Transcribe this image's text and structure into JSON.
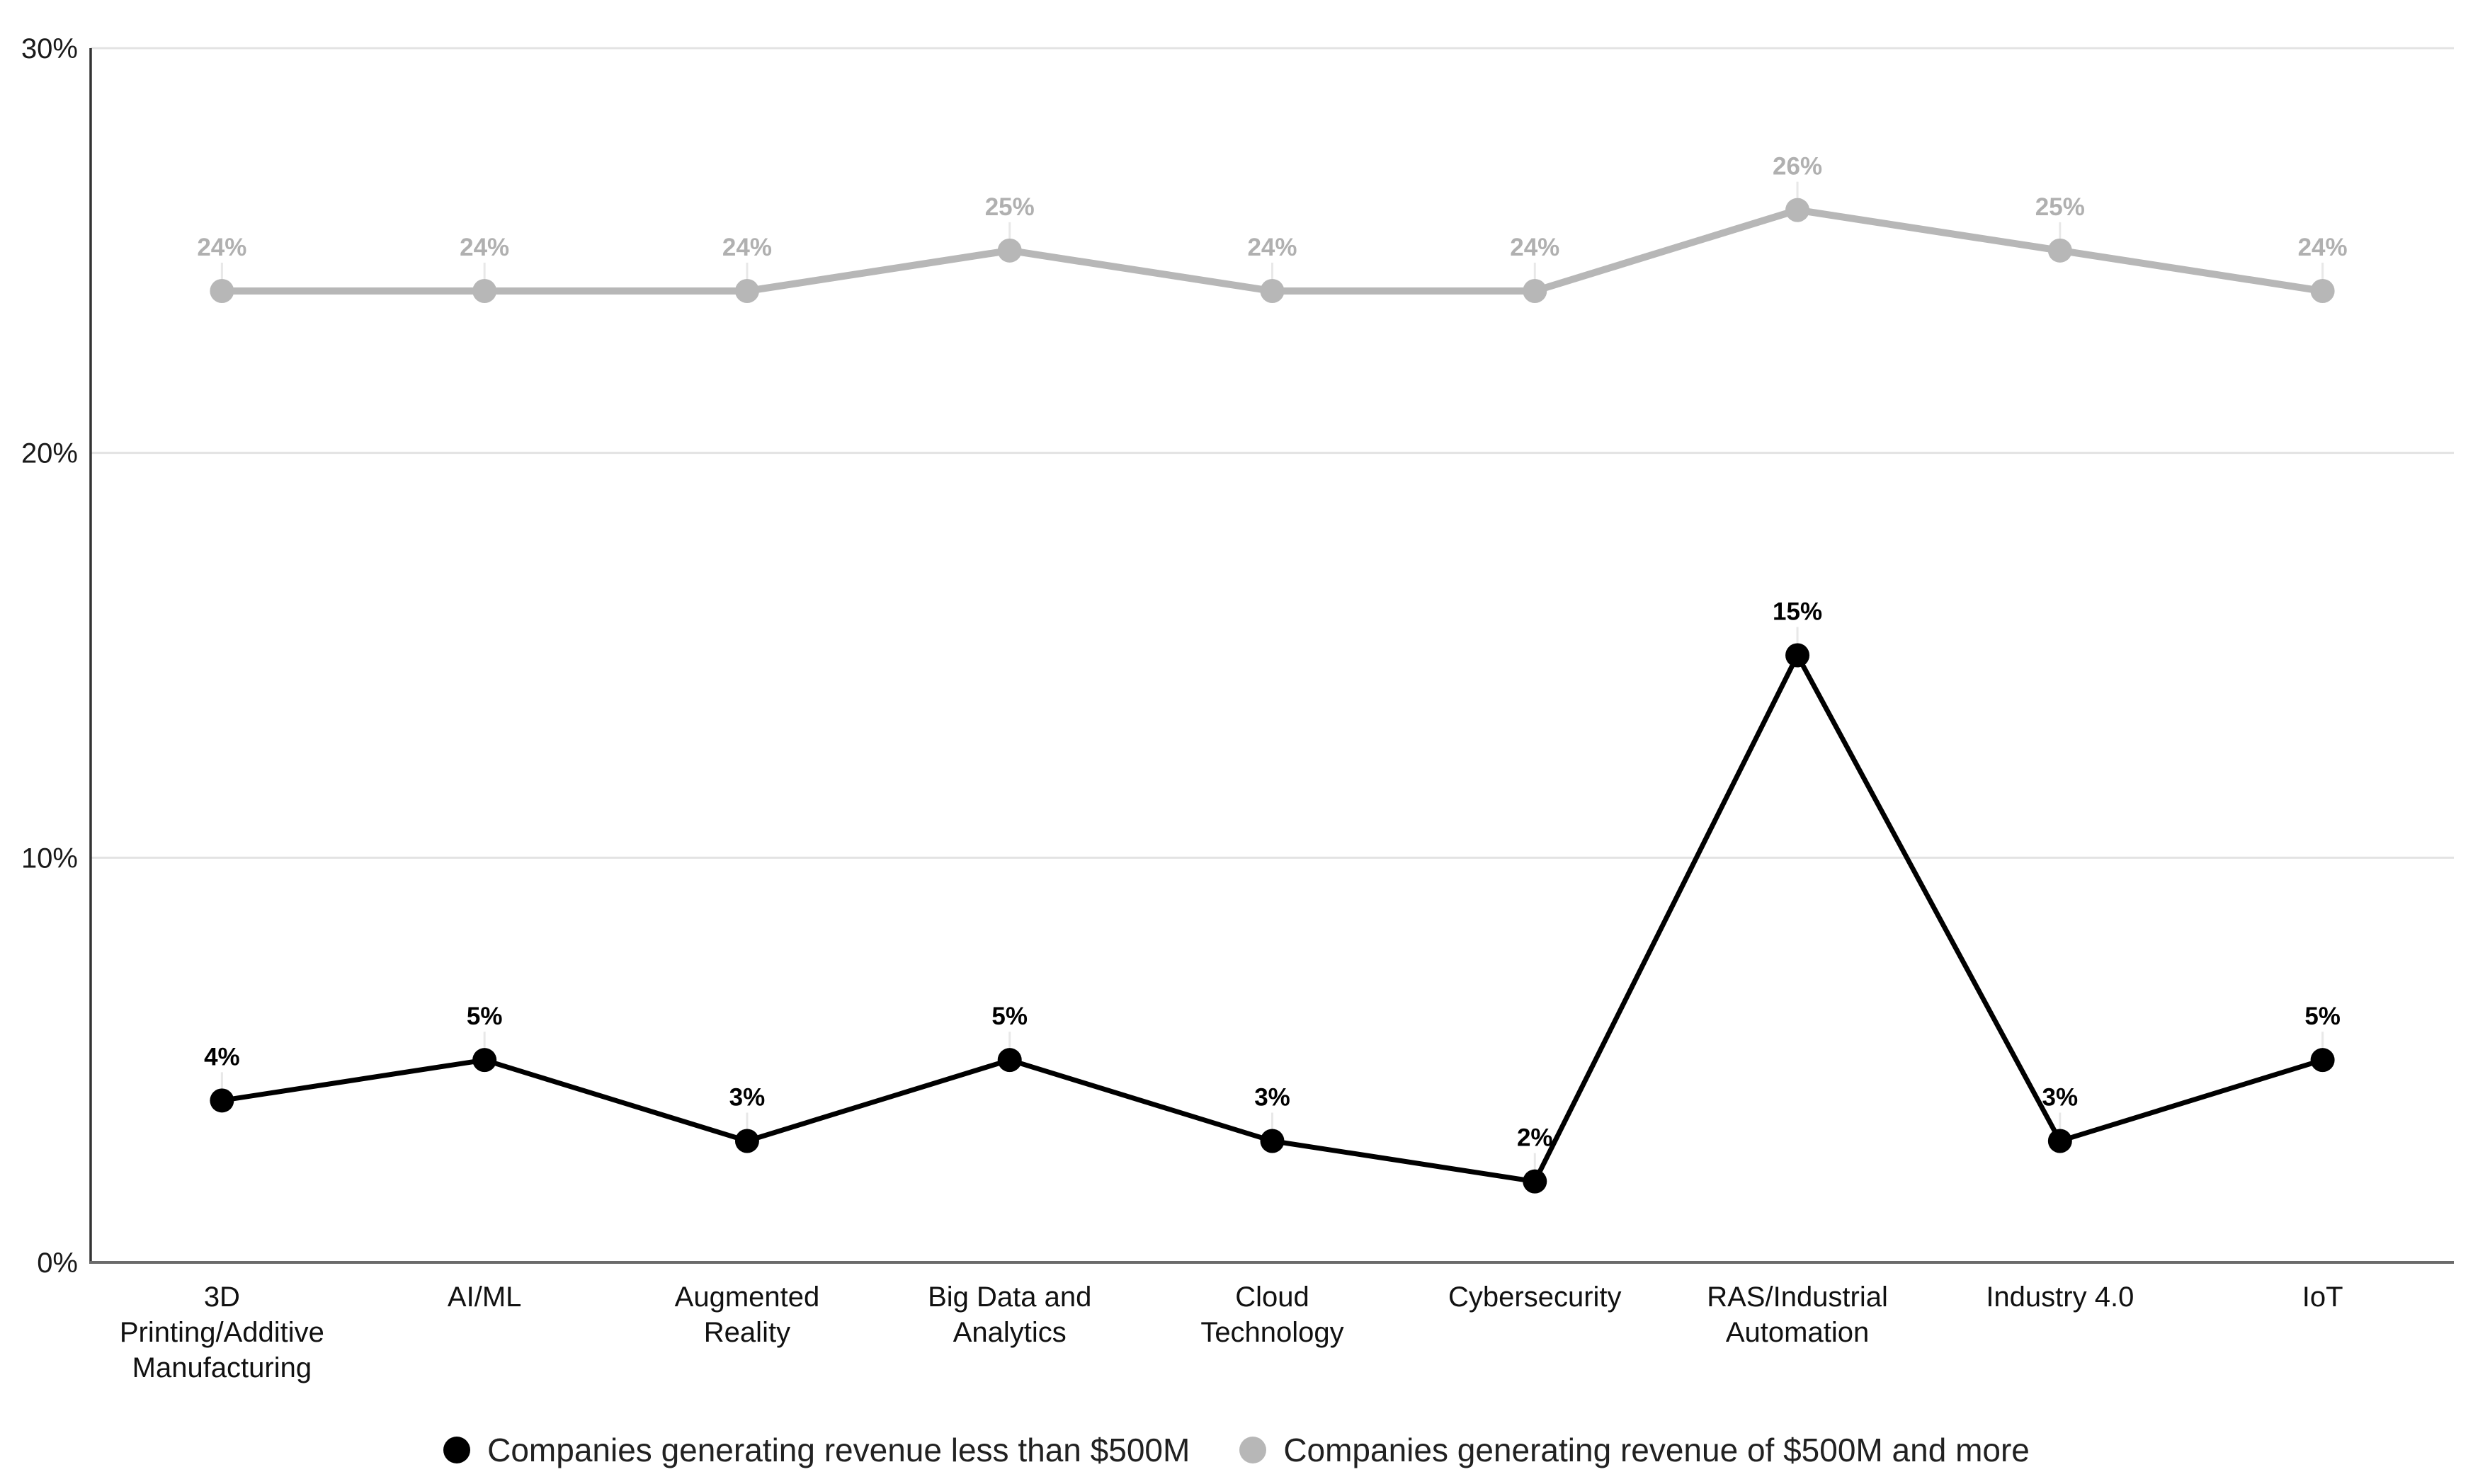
{
  "chart_data": {
    "type": "line",
    "title": "",
    "xlabel": "",
    "ylabel": "",
    "ylim": [
      0,
      30
    ],
    "grid": "horizontal",
    "legend_position": "bottom",
    "y_ticks": [
      {
        "value": 0,
        "label": "0%"
      },
      {
        "value": 10,
        "label": "10%"
      },
      {
        "value": 20,
        "label": "20%"
      },
      {
        "value": 30,
        "label": "30%"
      }
    ],
    "categories": [
      "3D Printing/Additive Manufacturing",
      "AI/ML",
      "Augmented Reality",
      "Big Data and Analytics",
      "Cloud Technology",
      "Cybersecurity",
      "RAS/Industrial Automation",
      "Industry 4.0",
      "IoT"
    ],
    "category_display_lines": [
      [
        "3D",
        "Printing/Additive",
        "Manufacturing"
      ],
      [
        "AI/ML"
      ],
      [
        "Augmented",
        "Reality"
      ],
      [
        "Big Data and",
        "Analytics"
      ],
      [
        "Cloud",
        "Technology"
      ],
      [
        "Cybersecurity"
      ],
      [
        "RAS/Industrial",
        "Automation"
      ],
      [
        "Industry 4.0"
      ],
      [
        "IoT"
      ]
    ],
    "series": [
      {
        "name": "Companies generating revenue less than $500M",
        "color": "#000000",
        "label_color": "#000000",
        "values": [
          4,
          5,
          3,
          5,
          3,
          2,
          15,
          3,
          5
        ],
        "point_labels": [
          "4%",
          "5%",
          "3%",
          "5%",
          "3%",
          "2%",
          "15%",
          "3%",
          "5%"
        ]
      },
      {
        "name": "Companies generating revenue of $500M and more",
        "color": "#b7b7b7",
        "label_color": "#b0b0b0",
        "values": [
          24,
          24,
          24,
          25,
          24,
          24,
          26,
          25,
          24
        ],
        "point_labels": [
          "24%",
          "24%",
          "24%",
          "25%",
          "24%",
          "24%",
          "26%",
          "25%",
          "24%"
        ]
      }
    ]
  }
}
